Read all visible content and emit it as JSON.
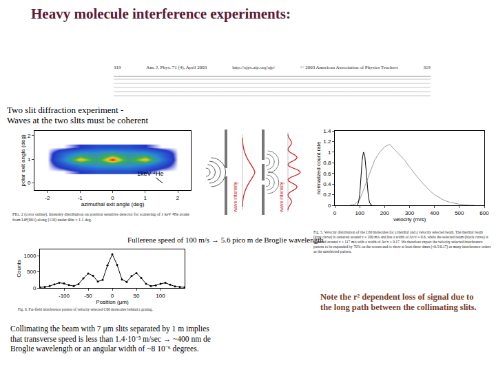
{
  "slide": {
    "title": "Heavy molecule interference experiments:",
    "journal_header": [
      "319",
      "Am. J. Phys. 71 (4), April 2003",
      "http://ojps.aip.org/ajp/",
      "© 2003 American Association of Physics Teachers",
      "319"
    ],
    "two_slit_note": [
      "Two slit diffraction experiment -",
      "Waves at the two slits must be coherent"
    ],
    "fullerene_note": "Fullerene speed of 100 m/s → 5.6 pico m de Broglie wavelength",
    "collimating_note": "Collimating the beam with 7 μm slits separated by 1 m implies that transverse speed is less than 1.4·10⁻³ m/sec → ~400 nm de Broglie wavelength or an angular width of ~8 10⁻⁶ degrees.",
    "signal_note": "Note the r² dependent loss of signal due to the long path between the collimating slits.",
    "diagram": {
      "labels": [
        "wave intensity",
        "wave intensity"
      ]
    }
  },
  "chart_data": [
    {
      "type": "heatmap",
      "xlabel": "azimuthal exit angle (deg)",
      "ylabel": "polar exit angle (deg)",
      "xlim": [
        -2.4,
        2.4
      ],
      "xticks": [
        -2,
        -1,
        0,
        1,
        2
      ],
      "ylim": [
        -0.3,
        2.2
      ],
      "yticks": [
        0,
        1,
        2
      ],
      "x": [
        -2,
        -1.5,
        -1,
        -0.5,
        0,
        0.5,
        1,
        1.5,
        2
      ],
      "y": [
        0.5,
        0.75,
        1,
        1.25,
        1.5
      ],
      "z": [
        [
          0,
          0,
          0.1,
          0.2,
          0.2,
          0.2,
          0.1,
          0,
          0
        ],
        [
          0,
          0.2,
          0.4,
          0.5,
          0.5,
          0.5,
          0.4,
          0.2,
          0
        ],
        [
          0,
          0.4,
          0.9,
          0.6,
          1,
          0.6,
          0.9,
          0.4,
          0
        ],
        [
          0,
          0.3,
          0.5,
          0.5,
          0.6,
          0.5,
          0.5,
          0.3,
          0
        ],
        [
          0,
          0,
          0.1,
          0.2,
          0.2,
          0.2,
          0.1,
          0,
          0
        ]
      ],
      "annotations": [
        "1keV ⁴He"
      ],
      "caption": "FIG. 2 (color online). Intensity distribution on position sensitive detector for scattering of 1 keV ⁴He atoms from LiF(001) along ⟨110⟩ under Φin = 1.1 deg.",
      "grid": false
    },
    {
      "type": "line",
      "xlabel": "velocity (m/s)",
      "ylabel": "normalized count rate",
      "xlim": [
        0,
        600
      ],
      "xticks": [
        0,
        100,
        200,
        300,
        400,
        500,
        600
      ],
      "ylim": [
        0,
        1.4
      ],
      "yticks": [
        0,
        0.2,
        0.4,
        0.6,
        0.8,
        1,
        1.2,
        1.4
      ],
      "series": [
        {
          "color": "#9a9a9a",
          "line_style": "solid",
          "x": [
            60,
            80,
            100,
            120,
            140,
            160,
            180,
            200,
            220,
            240,
            260,
            280,
            300,
            320,
            340,
            360,
            380,
            400,
            420,
            440,
            460,
            480,
            500,
            520,
            540,
            560
          ],
          "values": [
            0,
            0.02,
            0.1,
            0.35,
            0.6,
            0.85,
            1.0,
            1.1,
            1.15,
            1.05,
            0.95,
            0.85,
            0.72,
            0.6,
            0.48,
            0.38,
            0.28,
            0.2,
            0.14,
            0.09,
            0.06,
            0.04,
            0.02,
            0.01,
            0,
            0
          ]
        },
        {
          "color": "#000000",
          "line_style": "solid",
          "x": [
            90,
            95,
            100,
            105,
            110,
            115,
            120,
            125,
            130,
            135,
            140,
            145,
            150
          ],
          "values": [
            0,
            0.05,
            0.2,
            0.5,
            0.85,
            1.0,
            0.95,
            0.7,
            0.4,
            0.15,
            0.05,
            0.01,
            0
          ]
        }
      ],
      "caption": "Fig. 5. Velocity distribution of the C60 molecules for a thermal and a velocity selected beam. The thermal beam (gray curve) is centered around v = 200 m/s and has a width of Δv/v = 0.6, while the selected beam (black curve) is centered around v = 117 m/s with a width of Δv/v = 0.17. We therefore expect the velocity selected interference pattern to be expanded by 70% on the screen and to show at least three times (≈0.5/0.17) as many interference orders as the unselected pattern.",
      "grid": false
    },
    {
      "type": "line",
      "xlabel": "Position (μm)",
      "ylabel": "Counts",
      "xlim": [
        -150,
        150
      ],
      "xticks": [
        -100,
        -50,
        0,
        50,
        100
      ],
      "ylim": [
        0,
        1200
      ],
      "yticks": [
        0,
        500,
        1000
      ],
      "series": [
        {
          "color": "#000000",
          "line_style": "solid",
          "marker": "circle",
          "x": [
            -150,
            -140,
            -130,
            -120,
            -110,
            -100,
            -90,
            -80,
            -70,
            -60,
            -50,
            -40,
            -30,
            -20,
            -10,
            0,
            10,
            20,
            30,
            40,
            50,
            60,
            70,
            80,
            90,
            100,
            110,
            120,
            130,
            140,
            150
          ],
          "values": [
            20,
            30,
            60,
            110,
            160,
            140,
            90,
            60,
            120,
            300,
            450,
            380,
            200,
            250,
            700,
            1050,
            720,
            260,
            190,
            370,
            460,
            310,
            130,
            60,
            80,
            130,
            160,
            100,
            50,
            30,
            20
          ]
        }
      ],
      "caption": "Fig. 6. Far-field interference pattern of velocity selected C60 molecules behind a grating.",
      "grid": false
    }
  ]
}
